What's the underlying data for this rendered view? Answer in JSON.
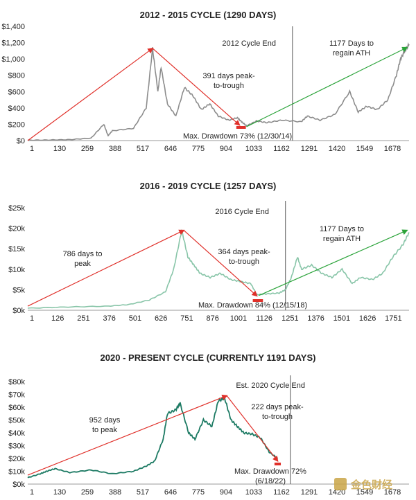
{
  "chart_data": [
    {
      "type": "line",
      "title": "2012 - 2015 CYCLE (1290 DAYS)",
      "x_ticks": [
        "1",
        "130",
        "259",
        "388",
        "517",
        "646",
        "775",
        "904",
        "1033",
        "1162",
        "1291",
        "1420",
        "1549",
        "1678"
      ],
      "y_ticks": [
        "$0",
        "$200",
        "$400",
        "$600",
        "$800",
        "$1,000",
        "$1,200",
        "$1,400"
      ],
      "ylim": [
        0,
        1400
      ],
      "xlim": [
        1,
        1800
      ],
      "series": [
        {
          "color": "#8c8c8c",
          "x": [
            1,
            100,
            200,
            300,
            360,
            380,
            400,
            500,
            560,
            590,
            615,
            630,
            660,
            700,
            740,
            780,
            820,
            860,
            900,
            950,
            990,
            1010,
            1033,
            1080,
            1130,
            1200,
            1291,
            1320,
            1380,
            1450,
            1520,
            1560,
            1600,
            1650,
            1700,
            1740,
            1760,
            1780,
            1800
          ],
          "y": [
            5,
            7,
            12,
            30,
            200,
            60,
            120,
            150,
            400,
            1130,
            600,
            900,
            450,
            300,
            650,
            550,
            380,
            450,
            300,
            250,
            280,
            230,
            180,
            240,
            220,
            250,
            230,
            300,
            250,
            320,
            600,
            350,
            420,
            380,
            500,
            800,
            1000,
            1100,
            1180
          ]
        }
      ],
      "annotations": [
        {
          "id": "cycle_end",
          "text": "2012 Cycle End",
          "x": 1250
        },
        {
          "id": "recover_1",
          "text": "1177 Days to"
        },
        {
          "id": "recover_2",
          "text": "regain ATH"
        },
        {
          "id": "p2t_1",
          "text": "391 days peak-"
        },
        {
          "id": "p2t_2",
          "text": "to-trough"
        },
        {
          "id": "drawdown",
          "text": "Max. Drawdown 73% (12/30/14)"
        }
      ],
      "arrows": [
        {
          "color": "#e0302a",
          "from": [
            1,
            0
          ],
          "to": [
            590,
            1130
          ]
        },
        {
          "color": "#e0302a",
          "from": [
            590,
            1130
          ],
          "to": [
            1000,
            190
          ]
        },
        {
          "color": "#2aa339",
          "from": [
            1033,
            170
          ],
          "to": [
            1790,
            1140
          ]
        }
      ],
      "drawdown_bar_x": [
        985,
        1030
      ]
    },
    {
      "type": "line",
      "title": "2016 - 2019 CYCLE (1257 DAYS)",
      "x_ticks": [
        "1",
        "126",
        "251",
        "376",
        "501",
        "626",
        "751",
        "876",
        "1001",
        "1126",
        "1251",
        "1376",
        "1501",
        "1626",
        "1751"
      ],
      "y_ticks": [
        "$0k",
        "$5k",
        "$10k",
        "$15k",
        "$20k",
        "$25k"
      ],
      "ylim": [
        0,
        25
      ],
      "xlim": [
        1,
        1880
      ],
      "series": [
        {
          "color": "#88c5a8",
          "x": [
            1,
            200,
            400,
            500,
            600,
            680,
            720,
            760,
            790,
            820,
            850,
            900,
            950,
            1000,
            1050,
            1100,
            1130,
            1180,
            1240,
            1271,
            1300,
            1330,
            1350,
            1400,
            1450,
            1500,
            1550,
            1600,
            1640,
            1700,
            1750,
            1800,
            1850,
            1880
          ],
          "y": [
            0.5,
            0.8,
            1,
            1.4,
            2.5,
            4.5,
            10,
            19.5,
            13,
            11,
            9,
            8,
            9,
            7.5,
            7,
            6.5,
            3.8,
            4,
            4.2,
            5,
            8,
            13,
            10,
            11,
            9,
            8,
            10,
            6.5,
            8,
            7.5,
            9,
            13,
            16,
            19
          ]
        }
      ],
      "annotations": [
        {
          "id": "cycle_end",
          "text": "2016 Cycle End",
          "x": 1271
        },
        {
          "id": "peak_1",
          "text": "786 days to"
        },
        {
          "id": "peak_2",
          "text": "peak"
        },
        {
          "id": "recover_1",
          "text": "1177 Days to"
        },
        {
          "id": "recover_2",
          "text": "regain ATH"
        },
        {
          "id": "p2t_1",
          "text": "364 days peak-"
        },
        {
          "id": "p2t_2",
          "text": "to-trough"
        },
        {
          "id": "drawdown",
          "text": "Max. Drawdown 84% (12/15/18)"
        }
      ],
      "arrows": [
        {
          "color": "#e0302a",
          "from": [
            1,
            1
          ],
          "to": [
            770,
            19.5
          ]
        },
        {
          "color": "#e0302a",
          "from": [
            770,
            19.5
          ],
          "to": [
            1130,
            3.5
          ]
        },
        {
          "color": "#2aa339",
          "from": [
            1140,
            3.6
          ],
          "to": [
            1870,
            19.5
          ]
        }
      ],
      "drawdown_bar_x": [
        1110,
        1160
      ]
    },
    {
      "type": "line",
      "title": "2020 - PRESENT CYCLE (CURRENTLY 1191 DAYS)",
      "x_ticks": [
        "1",
        "130",
        "259",
        "388",
        "517",
        "646",
        "775",
        "904",
        "1033",
        "1162",
        "1291",
        "1420",
        "1549",
        "1678"
      ],
      "y_ticks": [
        "$0k",
        "$10k",
        "$20k",
        "$30k",
        "$40k",
        "$50k",
        "$60k",
        "$70k",
        "$80k"
      ],
      "ylim": [
        0,
        80
      ],
      "xlim": [
        1,
        1800
      ],
      "series": [
        {
          "color": "#1c7a63",
          "x": [
            1,
            60,
            90,
            130,
            200,
            300,
            400,
            500,
            560,
            600,
            640,
            660,
            700,
            720,
            760,
            790,
            830,
            870,
            900,
            930,
            960,
            990,
            1020,
            1060,
            1100,
            1140,
            1180
          ],
          "y": [
            5,
            8,
            10,
            12,
            9,
            11,
            8,
            10,
            14,
            18,
            35,
            55,
            58,
            63,
            40,
            35,
            50,
            45,
            65,
            67,
            50,
            45,
            40,
            39,
            36,
            25,
            20
          ]
        }
      ],
      "annotations": [
        {
          "id": "cycle_end",
          "text": "Est. 2020 Cycle End",
          "x": 1240
        },
        {
          "id": "peak_1",
          "text": "952 days"
        },
        {
          "id": "peak_2",
          "text": "to peak"
        },
        {
          "id": "p2t_1",
          "text": "222 days peak-"
        },
        {
          "id": "p2t_2",
          "text": "to-trough"
        },
        {
          "id": "drawdown_1",
          "text": "Max. Drawdown 72%"
        },
        {
          "id": "drawdown_2",
          "text": "(6/18/22)"
        }
      ],
      "arrows": [
        {
          "color": "#e0302a",
          "from": [
            1,
            7
          ],
          "to": [
            940,
            69
          ]
        },
        {
          "color": "#e0302a",
          "from": [
            940,
            69
          ],
          "to": [
            1180,
            18
          ]
        }
      ],
      "drawdown_bar_x": [
        1165,
        1195
      ]
    }
  ],
  "watermark": {
    "text": "金色财经"
  }
}
